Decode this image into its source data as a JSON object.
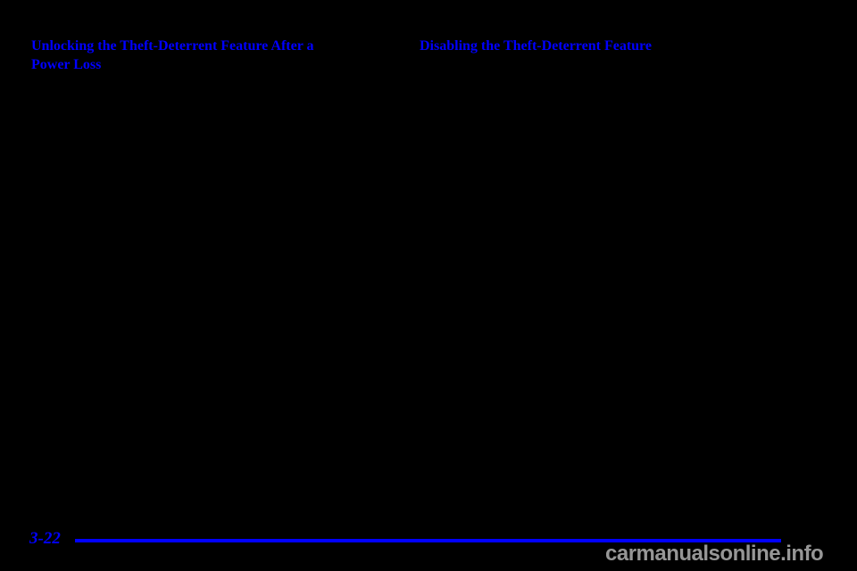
{
  "page": {
    "background_color": "#000000"
  },
  "headings": {
    "left_line1": "Unlocking the Theft-Deterrent Feature After a",
    "left_line2": "Power Loss",
    "right": "Disabling the Theft-Deterrent Feature",
    "color": "#0000FF"
  },
  "footer": {
    "page_number": "3-22",
    "rule_color": "#0000FF"
  },
  "watermark": {
    "text": "carmanualsonline.info",
    "color": "#969696"
  }
}
